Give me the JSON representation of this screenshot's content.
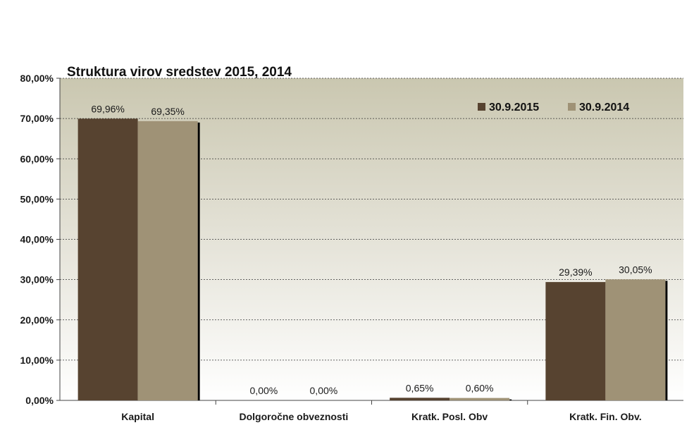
{
  "chart_data": {
    "type": "bar",
    "title": "Struktura virov sredstev 2015, 2014",
    "categories": [
      "Kapital",
      "Dolgoročne obveznosti",
      "Kratk. Posl. Obv",
      "Kratk. Fin. Obv."
    ],
    "series": [
      {
        "name": "30.9.2015",
        "color": "#574330",
        "values": [
          69.96,
          0.0,
          0.65,
          29.39
        ],
        "labels": [
          "69,96%",
          "0,00%",
          "0,65%",
          "29,39%"
        ]
      },
      {
        "name": "30.9.2014",
        "color": "#9f9276",
        "values": [
          69.35,
          0.0,
          0.6,
          30.05
        ],
        "labels": [
          "69,35%",
          "0,00%",
          "0,60%",
          "30,05%"
        ]
      }
    ],
    "ylim": [
      0,
      80
    ],
    "yticks": [
      0,
      10,
      20,
      30,
      40,
      50,
      60,
      70,
      80
    ],
    "ytick_labels": [
      "0,00%",
      "10,00%",
      "20,00%",
      "30,00%",
      "40,00%",
      "50,00%",
      "60,00%",
      "70,00%",
      "80,00%"
    ],
    "xlabel": "",
    "ylabel": "",
    "grid": true,
    "legend_position": "top-right",
    "plot_background": "#d4d1bd"
  }
}
